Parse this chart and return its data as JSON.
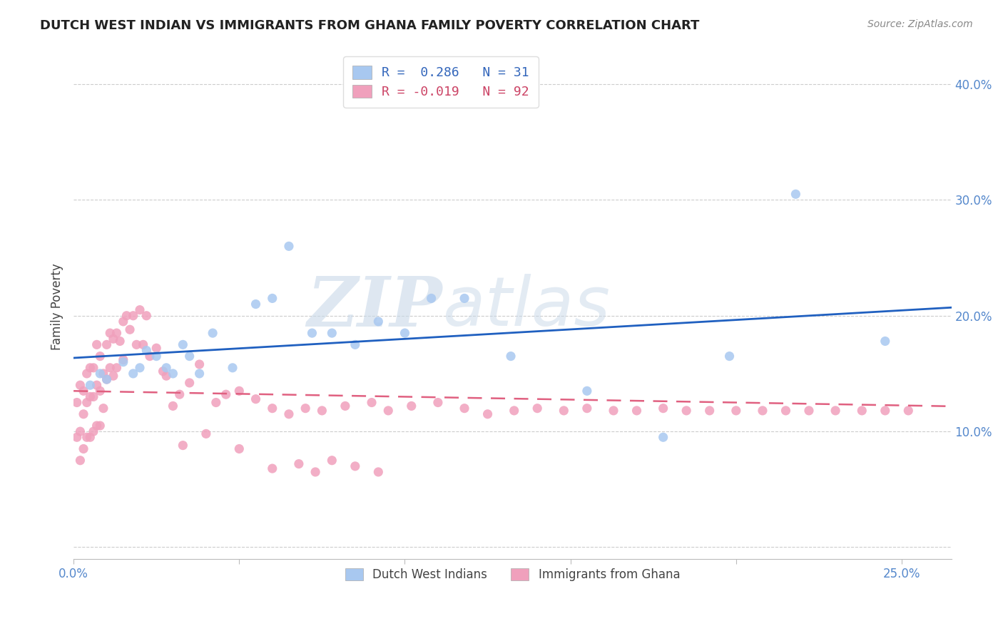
{
  "title": "DUTCH WEST INDIAN VS IMMIGRANTS FROM GHANA FAMILY POVERTY CORRELATION CHART",
  "source": "Source: ZipAtlas.com",
  "ylabel": "Family Poverty",
  "xlim": [
    0.0,
    0.265
  ],
  "ylim": [
    -0.01,
    0.425
  ],
  "legend_line1": "R =  0.286   N = 31",
  "legend_line2": "R = -0.019   N = 92",
  "blue_color": "#A8C8F0",
  "pink_color": "#F0A0BC",
  "trend_blue": "#2060C0",
  "trend_pink": "#E06080",
  "watermark_zip": "ZIP",
  "watermark_atlas": "atlas",
  "blue_scatter_x": [
    0.005,
    0.008,
    0.01,
    0.015,
    0.018,
    0.02,
    0.022,
    0.025,
    0.028,
    0.03,
    0.033,
    0.035,
    0.038,
    0.042,
    0.048,
    0.055,
    0.06,
    0.065,
    0.072,
    0.078,
    0.085,
    0.092,
    0.1,
    0.108,
    0.118,
    0.132,
    0.155,
    0.178,
    0.198,
    0.218,
    0.245
  ],
  "blue_scatter_y": [
    0.14,
    0.15,
    0.145,
    0.16,
    0.15,
    0.155,
    0.17,
    0.165,
    0.155,
    0.15,
    0.175,
    0.165,
    0.15,
    0.185,
    0.155,
    0.21,
    0.215,
    0.26,
    0.185,
    0.185,
    0.175,
    0.195,
    0.185,
    0.215,
    0.215,
    0.165,
    0.135,
    0.095,
    0.165,
    0.305,
    0.178
  ],
  "pink_scatter_x": [
    0.001,
    0.001,
    0.002,
    0.002,
    0.002,
    0.003,
    0.003,
    0.003,
    0.004,
    0.004,
    0.004,
    0.005,
    0.005,
    0.005,
    0.006,
    0.006,
    0.006,
    0.007,
    0.007,
    0.007,
    0.008,
    0.008,
    0.008,
    0.009,
    0.009,
    0.01,
    0.01,
    0.011,
    0.011,
    0.012,
    0.012,
    0.013,
    0.013,
    0.014,
    0.015,
    0.015,
    0.016,
    0.017,
    0.018,
    0.019,
    0.02,
    0.021,
    0.022,
    0.023,
    0.025,
    0.027,
    0.03,
    0.032,
    0.035,
    0.038,
    0.04,
    0.043,
    0.046,
    0.05,
    0.055,
    0.06,
    0.065,
    0.07,
    0.075,
    0.082,
    0.09,
    0.095,
    0.102,
    0.11,
    0.118,
    0.125,
    0.133,
    0.14,
    0.148,
    0.155,
    0.163,
    0.17,
    0.178,
    0.185,
    0.192,
    0.2,
    0.208,
    0.215,
    0.222,
    0.23,
    0.238,
    0.245,
    0.252,
    0.06,
    0.068,
    0.073,
    0.078,
    0.085,
    0.092,
    0.05,
    0.028,
    0.033
  ],
  "pink_scatter_y": [
    0.125,
    0.095,
    0.14,
    0.1,
    0.075,
    0.135,
    0.115,
    0.085,
    0.15,
    0.125,
    0.095,
    0.155,
    0.13,
    0.095,
    0.155,
    0.13,
    0.1,
    0.175,
    0.14,
    0.105,
    0.165,
    0.135,
    0.105,
    0.15,
    0.12,
    0.175,
    0.145,
    0.185,
    0.155,
    0.18,
    0.148,
    0.185,
    0.155,
    0.178,
    0.195,
    0.162,
    0.2,
    0.188,
    0.2,
    0.175,
    0.205,
    0.175,
    0.2,
    0.165,
    0.172,
    0.152,
    0.122,
    0.132,
    0.142,
    0.158,
    0.098,
    0.125,
    0.132,
    0.135,
    0.128,
    0.12,
    0.115,
    0.12,
    0.118,
    0.122,
    0.125,
    0.118,
    0.122,
    0.125,
    0.12,
    0.115,
    0.118,
    0.12,
    0.118,
    0.12,
    0.118,
    0.118,
    0.12,
    0.118,
    0.118,
    0.118,
    0.118,
    0.118,
    0.118,
    0.118,
    0.118,
    0.118,
    0.118,
    0.068,
    0.072,
    0.065,
    0.075,
    0.07,
    0.065,
    0.085,
    0.148,
    0.088
  ]
}
